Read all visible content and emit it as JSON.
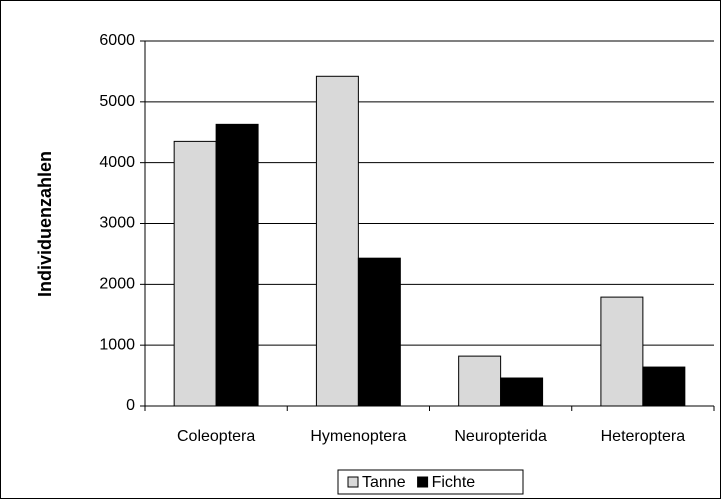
{
  "chart_data": {
    "type": "bar",
    "ylabel": "Individuenzahlen",
    "categories": [
      "Coleoptera",
      "Hymenoptera",
      "Neuropterida",
      "Heteroptera"
    ],
    "series": [
      {
        "name": "Tanne",
        "color": "#d9d9d9",
        "values": [
          4350,
          5420,
          820,
          1790
        ]
      },
      {
        "name": "Fichte",
        "color": "#000000",
        "values": [
          4630,
          2430,
          460,
          640
        ]
      }
    ],
    "ylim": [
      0,
      6000
    ],
    "yticks": [
      0,
      1000,
      2000,
      3000,
      4000,
      5000,
      6000
    ],
    "grid": true,
    "legend": "bottom"
  }
}
